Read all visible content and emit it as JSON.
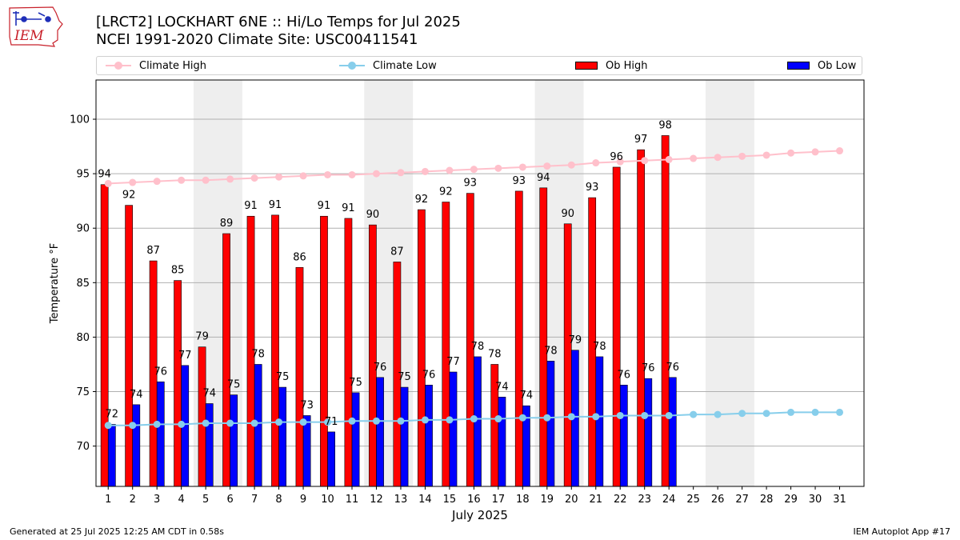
{
  "header": {
    "title_line1": "[LRCT2] LOCKHART 6NE :: Hi/Lo Temps for Jul 2025",
    "title_line2": "NCEI 1991-2020 Climate Site: USC00411541",
    "logo_text": "IEM"
  },
  "legend": {
    "climate_high": "Climate High",
    "climate_low": "Climate Low",
    "ob_high": "Ob High",
    "ob_low": "Ob Low"
  },
  "footer": {
    "left": "Generated at 25 Jul 2025 12:25 AM CDT in 0.58s",
    "right": "IEM Autoplot App #17"
  },
  "colors": {
    "climate_high": "#ffc0cb",
    "climate_low": "#87ceeb",
    "ob_high": "#ff0000",
    "ob_low": "#0000ff",
    "weekend_shade": "#eeeeee",
    "grid": "#b0b0b0",
    "logo_red": "#c8202a",
    "logo_blue": "#1f2fb8"
  },
  "chart_data": {
    "type": "bar",
    "xlabel": "July 2025",
    "ylabel": "Temperature °F",
    "ylim": [
      66.3,
      103.6
    ],
    "yticks": [
      70,
      75,
      80,
      85,
      90,
      95,
      100
    ],
    "grid": "horizontal",
    "legend_position": "top",
    "days": [
      1,
      2,
      3,
      4,
      5,
      6,
      7,
      8,
      9,
      10,
      11,
      12,
      13,
      14,
      15,
      16,
      17,
      18,
      19,
      20,
      21,
      22,
      23,
      24,
      25,
      26,
      27,
      28,
      29,
      30,
      31
    ],
    "shaded_day_ranges": [
      [
        5,
        6
      ],
      [
        12,
        13
      ],
      [
        19,
        20
      ],
      [
        26,
        27
      ]
    ],
    "series": [
      {
        "name": "Ob High",
        "type": "bar",
        "values": [
          94.0,
          92.1,
          87.0,
          85.2,
          79.1,
          89.5,
          91.1,
          91.2,
          86.4,
          91.1,
          90.9,
          90.3,
          86.9,
          91.7,
          92.4,
          93.2,
          77.5,
          93.4,
          93.7,
          90.4,
          92.8,
          95.6,
          97.2,
          98.5
        ],
        "labels": [
          "94",
          "92",
          "87",
          "85",
          "79",
          "89",
          "91",
          "91",
          "86",
          "91",
          "91",
          "90",
          "87",
          "92",
          "92",
          "93",
          "78",
          "93",
          "94",
          "90",
          "93",
          "96",
          "97",
          "98"
        ]
      },
      {
        "name": "Ob Low",
        "type": "bar",
        "values": [
          72.0,
          73.8,
          75.9,
          77.4,
          73.9,
          74.7,
          77.5,
          75.4,
          72.8,
          71.3,
          74.9,
          76.3,
          75.4,
          75.6,
          76.8,
          78.2,
          74.5,
          73.7,
          77.8,
          78.8,
          78.2,
          75.6,
          76.2,
          76.3
        ],
        "labels": [
          "72",
          "74",
          "76",
          "77",
          "74",
          "75",
          "78",
          "75",
          "73",
          "71",
          "75",
          "76",
          "75",
          "76",
          "77",
          "78",
          "74",
          "74",
          "78",
          "79",
          "78",
          "76",
          "76",
          "76"
        ]
      },
      {
        "name": "Climate High",
        "type": "line",
        "values": [
          94.1,
          94.2,
          94.3,
          94.4,
          94.4,
          94.5,
          94.6,
          94.7,
          94.8,
          94.9,
          94.9,
          95.0,
          95.1,
          95.2,
          95.3,
          95.4,
          95.5,
          95.6,
          95.7,
          95.8,
          96.0,
          96.1,
          96.2,
          96.3,
          96.4,
          96.5,
          96.6,
          96.7,
          96.9,
          97.0,
          97.1
        ]
      },
      {
        "name": "Climate Low",
        "type": "line",
        "values": [
          71.9,
          71.9,
          72.0,
          72.0,
          72.1,
          72.1,
          72.1,
          72.2,
          72.2,
          72.2,
          72.3,
          72.3,
          72.3,
          72.4,
          72.4,
          72.5,
          72.5,
          72.6,
          72.6,
          72.7,
          72.7,
          72.8,
          72.8,
          72.8,
          72.9,
          72.9,
          73.0,
          73.0,
          73.1,
          73.1,
          73.1
        ]
      }
    ]
  }
}
